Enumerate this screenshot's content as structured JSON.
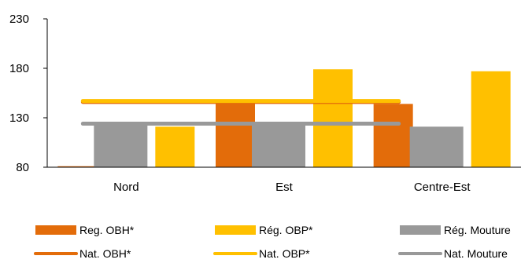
{
  "chart_data": {
    "type": "bar",
    "title": "",
    "xlabel": "",
    "ylabel": "",
    "ylim": [
      80,
      230
    ],
    "yticks": [
      80,
      130,
      180,
      230
    ],
    "categories": [
      "Nord",
      "Est",
      "Centre-Est"
    ],
    "series": [
      {
        "name": "Reg. OBH*",
        "kind": "bar",
        "color": "#E36C0A",
        "values": [
          81,
          146,
          144
        ]
      },
      {
        "name": "Rég. OBP*",
        "kind": "bar",
        "color": "#FFC000",
        "values": [
          121,
          179,
          177
        ]
      },
      {
        "name": "Rég. Mouture",
        "kind": "bar",
        "color": "#999999",
        "values": [
          125,
          125,
          121
        ]
      },
      {
        "name": "Nat. OBH*",
        "kind": "line",
        "color": "#E36C0A",
        "values": [
          146,
          146,
          146
        ]
      },
      {
        "name": "Nat. OBP*",
        "kind": "line",
        "color": "#FFC000",
        "values": [
          147,
          147,
          147
        ]
      },
      {
        "name": "Nat. Mouture",
        "kind": "line",
        "color": "#999999",
        "values": [
          124,
          124,
          124
        ]
      }
    ],
    "grid": false,
    "legend_position": "bottom"
  }
}
